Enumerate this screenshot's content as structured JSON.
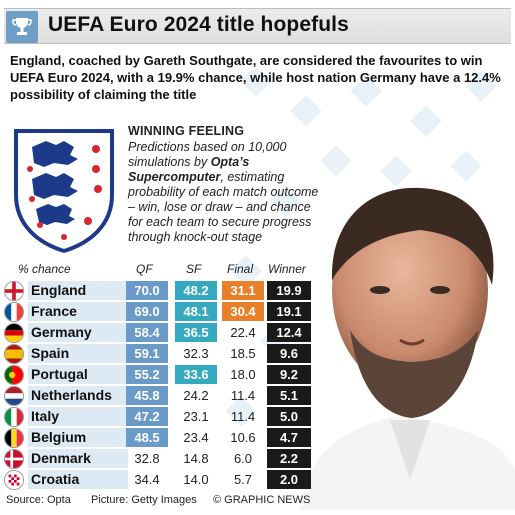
{
  "header": {
    "title": "UEFA Euro 2024 title hopefuls"
  },
  "intro": "England, coached by Gareth Southgate, are considered the favourites to win UEFA Euro 2024, with a 19.9% chance, while host nation Germany have a 12.4% possibility of claiming the title",
  "description": {
    "heading": "Winning Feeling",
    "line1": "Predictions based on 10,000 simulations by ",
    "brand": "Opta’s Supercomputer",
    "line2": ", estimating probability of each match outcome – win, lose or draw – and chance for each team to secure progress through knock-out stage"
  },
  "table": {
    "headers": {
      "chance": "% chance",
      "qf": "QF",
      "sf": "SF",
      "final": "Final",
      "winner": "Winner"
    },
    "rows": [
      {
        "team": "England",
        "qf": "70.0",
        "sf": "48.2",
        "final": "31.1",
        "winner": "19.9",
        "hl": [
          "qf",
          "sf",
          "final"
        ]
      },
      {
        "team": "France",
        "qf": "69.0",
        "sf": "48.1",
        "final": "30.4",
        "winner": "19.1",
        "hl": [
          "qf",
          "sf",
          "final"
        ]
      },
      {
        "team": "Germany",
        "qf": "58.4",
        "sf": "36.5",
        "final": "22.4",
        "winner": "12.4",
        "hl": [
          "qf",
          "sf"
        ]
      },
      {
        "team": "Spain",
        "qf": "59.1",
        "sf": "32.3",
        "final": "18.5",
        "winner": "9.6",
        "hl": [
          "qf"
        ]
      },
      {
        "team": "Portugal",
        "qf": "55.2",
        "sf": "33.6",
        "final": "18.0",
        "winner": "9.2",
        "hl": [
          "qf",
          "sf"
        ]
      },
      {
        "team": "Netherlands",
        "qf": "45.8",
        "sf": "24.2",
        "final": "11.4",
        "winner": "5.1",
        "hl": [
          "qf"
        ]
      },
      {
        "team": "Italy",
        "qf": "47.2",
        "sf": "23.1",
        "final": "11.4",
        "winner": "5.0",
        "hl": [
          "qf"
        ]
      },
      {
        "team": "Belgium",
        "qf": "48.5",
        "sf": "23.4",
        "final": "10.6",
        "winner": "4.7",
        "hl": [
          "qf"
        ]
      },
      {
        "team": "Denmark",
        "qf": "32.8",
        "sf": "14.8",
        "final": "6.0",
        "winner": "2.2",
        "hl": []
      },
      {
        "team": "Croatia",
        "qf": "34.4",
        "sf": "14.0",
        "final": "5.7",
        "winner": "2.0",
        "hl": []
      }
    ]
  },
  "footer": {
    "source": "Source: Opta",
    "picture": "Picture: Getty Images",
    "credit": "© GRAPHIC NEWS"
  },
  "colors": {
    "qf": "#6a9ac7",
    "sf": "#35a9bf",
    "final": "#e8802a",
    "winner": "#1a1a1a",
    "band": "#dde9f3"
  }
}
